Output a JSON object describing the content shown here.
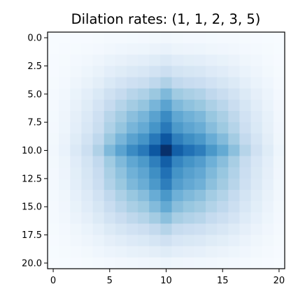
{
  "chart_data": {
    "type": "heatmap",
    "title": "Dilation rates: (1, 1, 2, 3, 5)",
    "xlabel": "",
    "ylabel": "",
    "xlim": [
      -0.5,
      20.5
    ],
    "ylim": [
      20.5,
      -0.5
    ],
    "colormap": "Blues",
    "grid": false,
    "x_ticks": [
      0,
      5,
      10,
      15,
      20
    ],
    "x_tick_labels": [
      "0",
      "5",
      "10",
      "15",
      "20"
    ],
    "y_ticks": [
      0,
      2.5,
      5,
      7.5,
      10,
      12.5,
      15,
      17.5,
      20
    ],
    "y_tick_labels": [
      "0.0",
      "2.5",
      "5.0",
      "7.5",
      "10.0",
      "12.5",
      "15.0",
      "17.5",
      "20.0"
    ],
    "size": 21,
    "center": 10,
    "value_range": [
      0,
      1
    ],
    "profile": [
      0.03,
      0.07,
      0.14,
      0.22,
      0.32,
      0.45,
      0.55,
      0.65,
      0.72,
      0.85,
      1.0,
      0.82,
      0.75,
      0.7,
      0.6,
      0.52,
      0.42,
      0.3,
      0.2,
      0.12,
      0.05
    ]
  },
  "colors": {
    "blues_ramp": [
      "#f7fbff",
      "#deebf7",
      "#c6dbef",
      "#9ecae1",
      "#6baed6",
      "#4292c6",
      "#2171b5",
      "#08519c",
      "#08306b"
    ],
    "axes": "#000000",
    "background": "#ffffff"
  }
}
